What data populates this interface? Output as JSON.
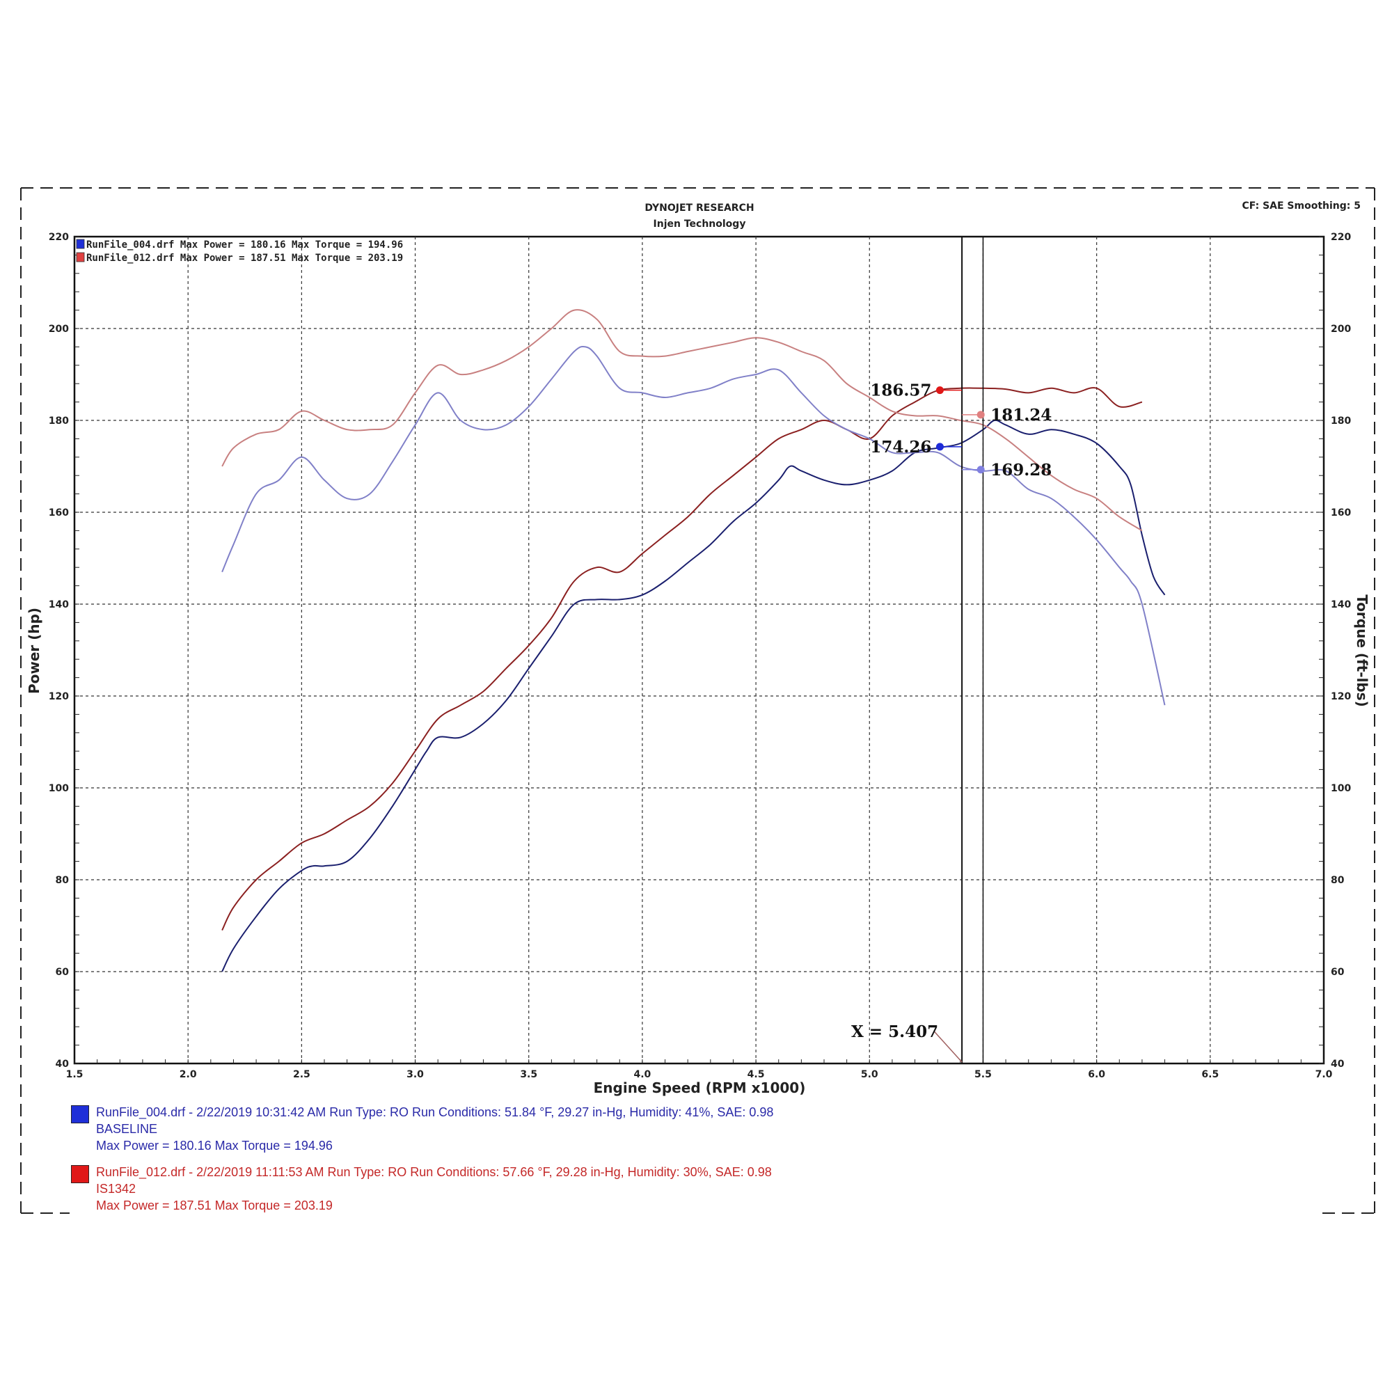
{
  "header": {
    "title": "DYNOJET RESEARCH",
    "subtitle": "Injen Technology",
    "cf_info": "CF: SAE  Smoothing: 5"
  },
  "legend_top": [
    {
      "text": "RunFile_004.drf Max Power = 180.16     Max Torque = 194.96",
      "color": "#1f2fd8"
    },
    {
      "text": "RunFile_012.drf Max Power = 187.51     Max Torque = 203.19",
      "color": "#d82f2f"
    }
  ],
  "cursor_label": "X = 5.407",
  "callouts": [
    {
      "text": "186.57",
      "x": 5.31,
      "y": 186.57,
      "color": "#e01818",
      "side": "left"
    },
    {
      "text": "181.24",
      "x": 5.49,
      "y": 181.24,
      "color": "#e08080",
      "side": "right"
    },
    {
      "text": "174.26",
      "x": 5.31,
      "y": 174.26,
      "color": "#1d2bd8",
      "side": "left"
    },
    {
      "text": "169.28",
      "x": 5.49,
      "y": 169.28,
      "color": "#8080e0",
      "side": "right"
    }
  ],
  "run_info": [
    {
      "line1": "RunFile_004.drf - 2/22/2019 10:31:42 AM  Run Type: RO  Run Conditions: 51.84 °F, 29.27 in-Hg,  Humidity:  41%, SAE: 0.98",
      "line2": "BASELINE",
      "line3": "Max Power = 180.16  Max Torque = 194.96",
      "color": "#2a2aa8",
      "swatch": "#1f2fd8"
    },
    {
      "line1": "RunFile_012.drf - 2/22/2019 11:11:53 AM  Run Type: RO  Run Conditions: 57.66 °F, 29.28 in-Hg,  Humidity:  30%, SAE: 0.98",
      "line2": "IS1342",
      "line3": "Max Power = 187.51  Max Torque = 203.19",
      "color": "#c42828",
      "swatch": "#e01818"
    }
  ],
  "chart_data": {
    "type": "line",
    "xlabel": "Engine Speed (RPM x1000)",
    "ylabel": "Power (hp)",
    "y2label": "Torque (ft-lbs)",
    "xlim": [
      1.5,
      7.0
    ],
    "ylim": [
      40,
      220
    ],
    "y2lim": [
      40,
      220
    ],
    "x_ticks": [
      "1.5",
      "2.0",
      "2.5",
      "3.0",
      "3.5",
      "4.0",
      "4.5",
      "5.0",
      "5.5",
      "6.0",
      "6.5",
      "7.0"
    ],
    "y_ticks": [
      "40",
      "60",
      "80",
      "100",
      "120",
      "140",
      "160",
      "180",
      "200",
      "220"
    ],
    "y2_ticks": [
      "40",
      "60",
      "80",
      "100",
      "120",
      "140",
      "160",
      "180",
      "200",
      "220"
    ],
    "grid": true,
    "cursor_x": 5.407,
    "series": [
      {
        "name": "RunFile_004.drf Power",
        "color": "#1a1f6e",
        "x": [
          2.15,
          2.2,
          2.3,
          2.4,
          2.5,
          2.55,
          2.6,
          2.7,
          2.8,
          2.9,
          3.0,
          3.05,
          3.1,
          3.2,
          3.3,
          3.4,
          3.5,
          3.6,
          3.7,
          3.8,
          3.9,
          4.0,
          4.1,
          4.2,
          4.3,
          4.4,
          4.5,
          4.6,
          4.65,
          4.7,
          4.8,
          4.9,
          5.0,
          5.1,
          5.2,
          5.3,
          5.4,
          5.5,
          5.55,
          5.6,
          5.7,
          5.8,
          5.9,
          6.0,
          6.1,
          6.15,
          6.2,
          6.25,
          6.3
        ],
        "y": [
          60,
          65,
          72,
          78,
          82,
          83,
          83,
          84,
          89,
          96,
          104,
          108,
          111,
          111,
          114,
          119,
          126,
          133,
          140,
          141,
          141,
          142,
          145,
          149,
          153,
          158,
          162,
          167,
          170,
          169,
          167,
          166,
          167,
          169,
          173,
          174,
          175,
          178,
          180,
          179,
          177,
          178,
          177,
          175,
          170,
          166,
          155,
          146,
          142
        ]
      },
      {
        "name": "RunFile_012.drf Power",
        "color": "#8b2020",
        "x": [
          2.15,
          2.2,
          2.3,
          2.4,
          2.5,
          2.6,
          2.7,
          2.8,
          2.9,
          3.0,
          3.1,
          3.2,
          3.3,
          3.4,
          3.5,
          3.6,
          3.7,
          3.8,
          3.9,
          4.0,
          4.1,
          4.2,
          4.3,
          4.4,
          4.5,
          4.6,
          4.7,
          4.8,
          4.9,
          5.0,
          5.1,
          5.2,
          5.3,
          5.4,
          5.5,
          5.6,
          5.7,
          5.8,
          5.9,
          6.0,
          6.1,
          6.2
        ],
        "y": [
          69,
          74,
          80,
          84,
          88,
          90,
          93,
          96,
          101,
          108,
          115,
          118,
          121,
          126,
          131,
          137,
          145,
          148,
          147,
          151,
          155,
          159,
          164,
          168,
          172,
          176,
          178,
          180,
          178,
          176,
          181,
          184,
          186.5,
          187,
          187,
          186.8,
          186,
          187,
          186,
          187,
          183,
          184
        ]
      },
      {
        "name": "RunFile_004.drf Torque",
        "color": "#8080c8",
        "x": [
          2.15,
          2.2,
          2.3,
          2.4,
          2.5,
          2.6,
          2.7,
          2.8,
          2.9,
          3.0,
          3.1,
          3.2,
          3.3,
          3.4,
          3.5,
          3.6,
          3.7,
          3.75,
          3.8,
          3.9,
          4.0,
          4.1,
          4.2,
          4.3,
          4.4,
          4.5,
          4.6,
          4.7,
          4.8,
          4.9,
          5.0,
          5.1,
          5.2,
          5.3,
          5.4,
          5.5,
          5.6,
          5.7,
          5.8,
          5.9,
          6.0,
          6.1,
          6.15,
          6.2,
          6.3
        ],
        "y": [
          147,
          153,
          164,
          167,
          172,
          167,
          163,
          164,
          171,
          179,
          186,
          180,
          178,
          179,
          183,
          189,
          195,
          196,
          194,
          187,
          186,
          185,
          186,
          187,
          189,
          190,
          191,
          186,
          181,
          178,
          176,
          173,
          173,
          173,
          170,
          169,
          169,
          165,
          163,
          159,
          154,
          148,
          145,
          140,
          118
        ]
      },
      {
        "name": "RunFile_012.drf Torque",
        "color": "#c88080",
        "x": [
          2.15,
          2.2,
          2.3,
          2.4,
          2.5,
          2.6,
          2.7,
          2.8,
          2.9,
          3.0,
          3.1,
          3.2,
          3.3,
          3.4,
          3.5,
          3.6,
          3.7,
          3.8,
          3.9,
          4.0,
          4.1,
          4.2,
          4.3,
          4.4,
          4.5,
          4.6,
          4.7,
          4.8,
          4.9,
          5.0,
          5.1,
          5.2,
          5.3,
          5.4,
          5.5,
          5.6,
          5.7,
          5.8,
          5.9,
          6.0,
          6.1,
          6.2
        ],
        "y": [
          170,
          174,
          177,
          178,
          182,
          180,
          178,
          178,
          179,
          186,
          192,
          190,
          191,
          193,
          196,
          200,
          204,
          202,
          195,
          194,
          194,
          195,
          196,
          197,
          198,
          197,
          195,
          193,
          188,
          185,
          182,
          181,
          181,
          180,
          179,
          176,
          172,
          168,
          165,
          163,
          159,
          156
        ]
      }
    ]
  }
}
